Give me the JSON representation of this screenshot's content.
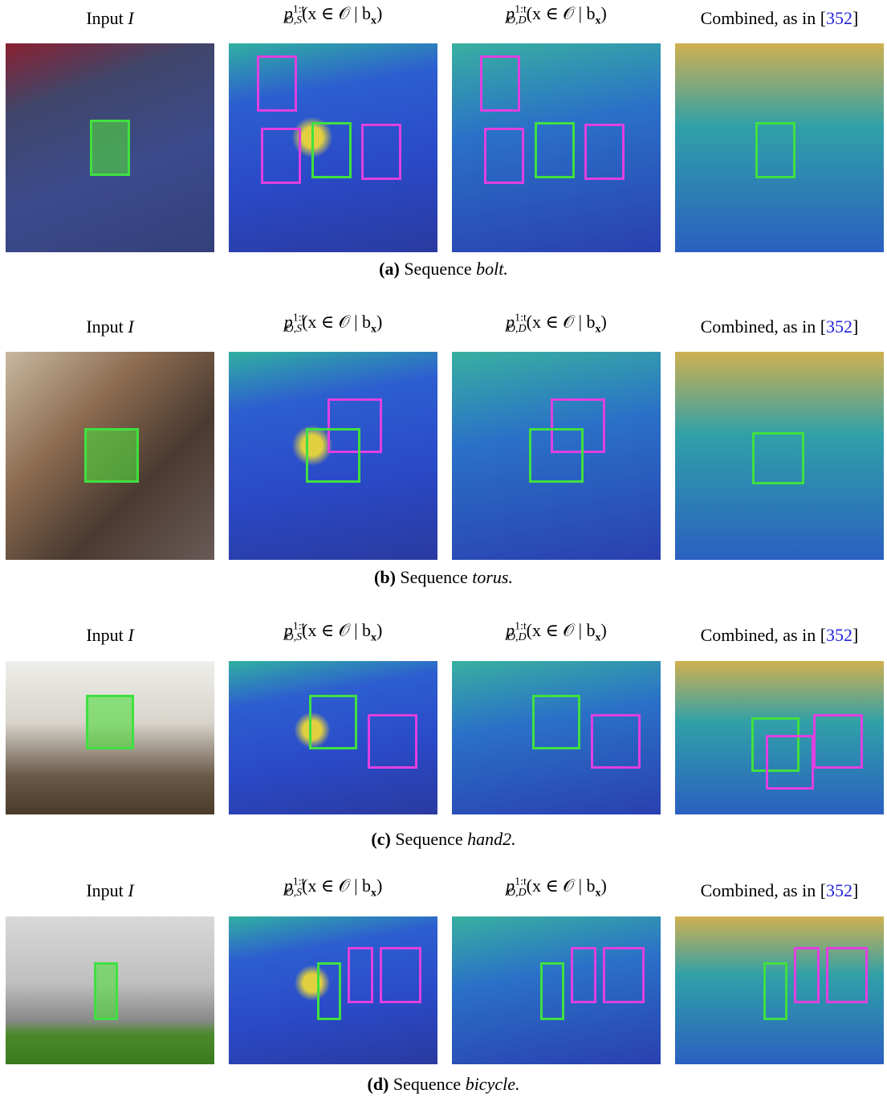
{
  "panels": [
    {
      "headers": [
        {
          "text": "Input",
          "var": "I"
        },
        {
          "p": "p",
          "sup": "1:t",
          "sub": "O,S",
          "body": "(x ∈ 𝒪 | b",
          "bsub": "x",
          "close": ")"
        },
        {
          "p": "p",
          "sup": "1:t",
          "sub": "O,D",
          "body": "(x ∈ 𝒪 | b",
          "bsub": "x",
          "close": ")"
        },
        {
          "text": "Combined, as in [",
          "ref": "352",
          "close": "]"
        }
      ],
      "caption": {
        "label": "(a)",
        "text": "Sequence",
        "name": "bolt."
      }
    },
    {
      "headers": [
        {
          "text": "Input",
          "var": "I"
        },
        {
          "p": "p",
          "sup": "1:t",
          "sub": "O,S",
          "body": "(x ∈ 𝒪 | b",
          "bsub": "x",
          "close": ")"
        },
        {
          "p": "p",
          "sup": "1:t",
          "sub": "O,D",
          "body": "(x ∈ 𝒪 | b",
          "bsub": "x",
          "close": ")"
        },
        {
          "text": "Combined, as in [",
          "ref": "352",
          "close": "]"
        }
      ],
      "caption": {
        "label": "(b)",
        "text": "Sequence",
        "name": "torus."
      }
    },
    {
      "headers": [
        {
          "text": "Input",
          "var": "I"
        },
        {
          "p": "p",
          "sup": "1:t",
          "sub": "O,S",
          "body": "(x ∈ 𝒪 | b",
          "bsub": "x",
          "close": ")"
        },
        {
          "p": "p",
          "sup": "1:t",
          "sub": "O,D",
          "body": "(x ∈ 𝒪 | b",
          "bsub": "x",
          "close": ")"
        },
        {
          "text": "Combined, as in [",
          "ref": "352",
          "close": "]"
        }
      ],
      "caption": {
        "label": "(c)",
        "text": "Sequence",
        "name": "hand2."
      }
    },
    {
      "headers": [
        {
          "text": "Input",
          "var": "I"
        },
        {
          "p": "p",
          "sup": "1:t",
          "sub": "O,S",
          "body": "(x ∈ 𝒪 | b",
          "bsub": "x",
          "close": ")"
        },
        {
          "p": "p",
          "sup": "1:t",
          "sub": "O,D",
          "body": "(x ∈ 𝒪 | b",
          "bsub": "x",
          "close": ")"
        },
        {
          "text": "Combined, as in [",
          "ref": "352",
          "close": "]"
        }
      ],
      "caption": {
        "label": "(d)",
        "text": "Sequence",
        "name": "bicycle."
      }
    }
  ]
}
